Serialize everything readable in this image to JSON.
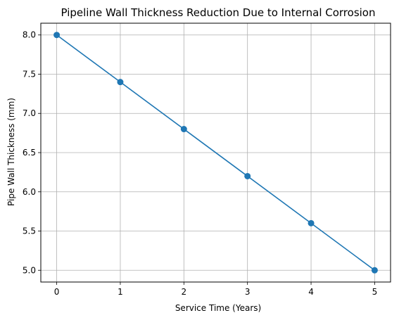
{
  "chart_data": {
    "type": "line",
    "title": "Pipeline Wall Thickness Reduction Due to Internal Corrosion",
    "xlabel": "Service Time (Years)",
    "ylabel": "Pipe Wall Thickness (mm)",
    "x": [
      0,
      1,
      2,
      3,
      4,
      5
    ],
    "series": [
      {
        "values": [
          8.0,
          7.4,
          6.8,
          6.2,
          5.6,
          5.0
        ],
        "color": "#1f77b4",
        "marker": "circle"
      }
    ],
    "xlim": [
      -0.25,
      5.25
    ],
    "ylim": [
      4.85,
      8.15
    ],
    "xticks": [
      0,
      1,
      2,
      3,
      4,
      5
    ],
    "xtick_labels": [
      "0",
      "1",
      "2",
      "3",
      "4",
      "5"
    ],
    "yticks": [
      5.0,
      5.5,
      6.0,
      6.5,
      7.0,
      7.5,
      8.0
    ],
    "ytick_labels": [
      "5.0",
      "5.5",
      "6.0",
      "6.5",
      "7.0",
      "7.5",
      "8.0"
    ],
    "grid": true
  }
}
